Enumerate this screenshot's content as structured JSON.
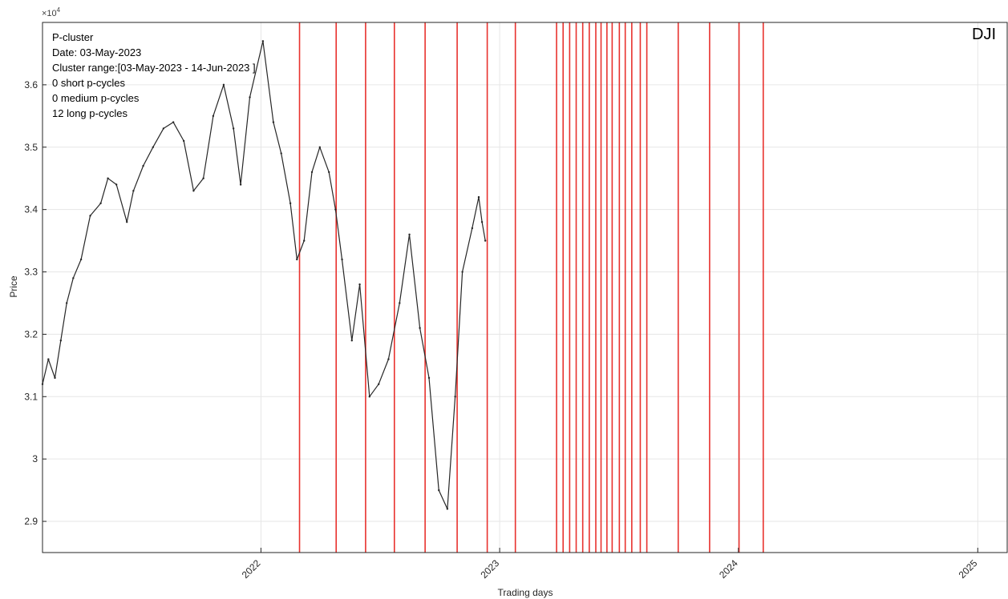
{
  "chart_data": {
    "type": "line",
    "title": "",
    "ticker": "DJI",
    "xlabel": "Trading days",
    "ylabel": "Price",
    "y_exponent_label": "×10",
    "y_exponent_power": "4",
    "y_multiplier": 10000,
    "xlim": [
      "2021-02-01",
      "2025-02-15"
    ],
    "ylim": [
      28500,
      37000
    ],
    "grid": true,
    "x_ticks": [
      {
        "date": "2022-01-01",
        "label": "2022"
      },
      {
        "date": "2023-01-01",
        "label": "2023"
      },
      {
        "date": "2024-01-01",
        "label": "2024"
      },
      {
        "date": "2025-01-01",
        "label": "2025"
      }
    ],
    "y_ticks": [
      {
        "value": 29000,
        "label": "2.9"
      },
      {
        "value": 30000,
        "label": "3"
      },
      {
        "value": 31000,
        "label": "3.1"
      },
      {
        "value": 32000,
        "label": "3.2"
      },
      {
        "value": 33000,
        "label": "3.3"
      },
      {
        "value": 34000,
        "label": "3.4"
      },
      {
        "value": 35000,
        "label": "3.5"
      },
      {
        "value": 36000,
        "label": "3.6"
      }
    ],
    "annotation_lines": [
      "P-cluster",
      "Date: 03-May-2023",
      "Cluster range:[03-May-2023 - 14-Jun-2023 ]",
      "0 short p-cycles",
      "0 medium p-cycles",
      "12 long p-cycles"
    ],
    "series": [
      {
        "color": "#262626",
        "x": [
          "2021-02-01",
          "2021-02-10",
          "2021-02-20",
          "2021-03-01",
          "2021-03-10",
          "2021-03-20",
          "2021-04-01",
          "2021-04-15",
          "2021-05-01",
          "2021-05-12",
          "2021-05-25",
          "2021-06-10",
          "2021-06-20",
          "2021-07-05",
          "2021-07-20",
          "2021-08-05",
          "2021-08-20",
          "2021-09-05",
          "2021-09-20",
          "2021-10-05",
          "2021-10-20",
          "2021-11-05",
          "2021-11-20",
          "2021-12-01",
          "2021-12-15",
          "2022-01-04",
          "2022-01-20",
          "2022-02-01",
          "2022-02-15",
          "2022-02-25",
          "2022-03-08",
          "2022-03-20",
          "2022-04-01",
          "2022-04-15",
          "2022-04-25",
          "2022-05-05",
          "2022-05-20",
          "2022-06-01",
          "2022-06-16",
          "2022-06-30",
          "2022-07-15",
          "2022-08-01",
          "2022-08-16",
          "2022-09-01",
          "2022-09-15",
          "2022-09-30",
          "2022-10-13",
          "2022-10-25",
          "2022-11-05",
          "2022-11-20",
          "2022-11-30",
          "2022-12-05",
          "2022-12-10"
        ],
        "values": [
          31200,
          31600,
          31300,
          31900,
          32500,
          32900,
          33200,
          33900,
          34100,
          34500,
          34400,
          33800,
          34300,
          34700,
          35000,
          35300,
          35400,
          35100,
          34300,
          34500,
          35500,
          36000,
          35300,
          34400,
          35800,
          36700,
          35400,
          34900,
          34100,
          33200,
          33500,
          34600,
          35000,
          34600,
          34000,
          33200,
          31900,
          32800,
          31000,
          31200,
          31600,
          32500,
          33600,
          32100,
          31300,
          29500,
          29200,
          31000,
          33000,
          33700,
          34200,
          33800,
          33500
        ]
      }
    ],
    "event_lines": {
      "color": "#e8322e",
      "dates": [
        "2022-03-01",
        "2022-04-26",
        "2022-06-10",
        "2022-07-24",
        "2022-09-09",
        "2022-10-28",
        "2022-12-13",
        "2023-01-25",
        "2023-03-29",
        "2023-04-08",
        "2023-04-18",
        "2023-04-28",
        "2023-05-08",
        "2023-05-18",
        "2023-05-28",
        "2023-06-05",
        "2023-06-14",
        "2023-06-22",
        "2023-07-03",
        "2023-07-12",
        "2023-07-22",
        "2023-08-04",
        "2023-08-14",
        "2023-10-01",
        "2023-11-18",
        "2024-01-02",
        "2024-02-08"
      ]
    }
  }
}
